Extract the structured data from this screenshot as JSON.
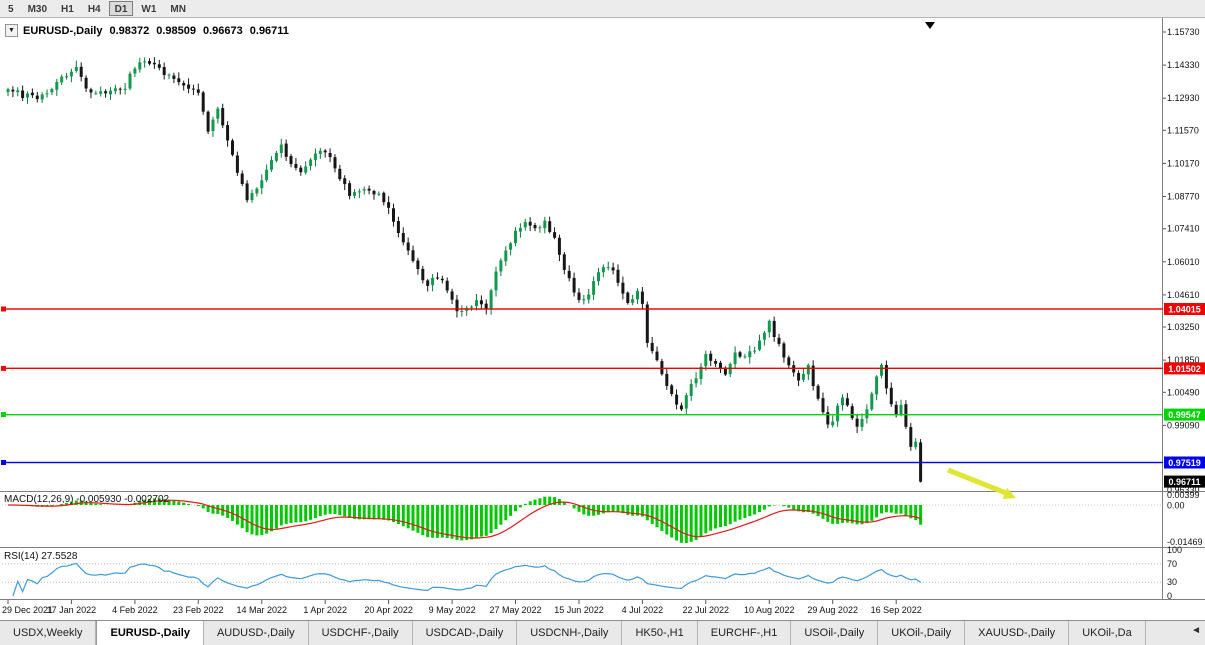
{
  "colors": {
    "bull": "#119a4e",
    "bear": "#161616",
    "wick_bull": "#0c7a3e",
    "wick_bear": "#161616",
    "macd_hist": "#00c800",
    "macd_signal": "#dd1c1c",
    "rsi_line": "#3f9ad9",
    "hline_red": "#f20000",
    "hline_green": "#00d400",
    "hline_blue": "#0000ee",
    "current_price_bg": "#000000",
    "axis_text": "#111111",
    "arrow": "#dfe534",
    "chrome_bg": "#ececec"
  },
  "toolbar": {
    "timeframes": [
      {
        "label": "5",
        "active": false
      },
      {
        "label": "M30",
        "active": false
      },
      {
        "label": "H1",
        "active": false
      },
      {
        "label": "H4",
        "active": false
      },
      {
        "label": "D1",
        "active": true
      },
      {
        "label": "W1",
        "active": false
      },
      {
        "label": "MN",
        "active": false
      }
    ]
  },
  "chart_header": {
    "collapse_icon": "▼",
    "symbol": "EURUSD-,Daily",
    "open": "0.98372",
    "high": "0.98509",
    "low": "0.96673",
    "close": "0.96711"
  },
  "price_axis": {
    "labels": [
      "1.15730",
      "1.14330",
      "1.12930",
      "1.11570",
      "1.10170",
      "1.08770",
      "1.07410",
      "1.06010",
      "1.04610",
      "1.03250",
      "1.01850",
      "1.00490",
      "0.99090"
    ],
    "bottom_label": "0.96330"
  },
  "hlines": [
    {
      "price": 1.04015,
      "label": "1.04015",
      "color_key": "hline_red"
    },
    {
      "price": 1.01502,
      "label": "1.01502",
      "color_key": "hline_red"
    },
    {
      "price": 0.99547,
      "label": "0.99547",
      "color_key": "hline_green"
    },
    {
      "price": 0.97519,
      "label": "0.97519",
      "color_key": "hline_blue"
    }
  ],
  "current_price_label": "0.96711",
  "macd_panel": {
    "title": "MACD(12,26,9) -0.005930 -0.002702",
    "axis_max_label": "0.00399",
    "axis_zero_label": "0.00",
    "axis_min_label": "-0.01469"
  },
  "rsi_panel": {
    "title": "RSI(14) 27.5528",
    "axis_labels": [
      "100",
      "70",
      "30",
      "0"
    ]
  },
  "date_axis": {
    "labels": [
      "29 Dec 2021",
      "17 Jan 2022",
      "4 Feb 2022",
      "23 Feb 2022",
      "14 Mar 2022",
      "1 Apr 2022",
      "20 Apr 2022",
      "9 May 2022",
      "27 May 2022",
      "15 Jun 2022",
      "4 Jul 2022",
      "22 Jul 2022",
      "10 Aug 2022",
      "29 Aug 2022",
      "16 Sep 2022"
    ]
  },
  "tabs": {
    "items": [
      {
        "label": "USDX,Weekly",
        "active": false
      },
      {
        "label": "EURUSD-,Daily",
        "active": true
      },
      {
        "label": "AUDUSD-,Daily",
        "active": false
      },
      {
        "label": "USDCHF-,Daily",
        "active": false
      },
      {
        "label": "USDCAD-,Daily",
        "active": false
      },
      {
        "label": "USDCNH-,Daily",
        "active": false
      },
      {
        "label": "HK50-,H1",
        "active": false
      },
      {
        "label": "EURCHF-,H1",
        "active": false
      },
      {
        "label": "USOil-,Daily",
        "active": false
      },
      {
        "label": "UKOil-,Daily",
        "active": false
      },
      {
        "label": "XAUUSD-,Daily",
        "active": false
      },
      {
        "label": "UKOil-,Da",
        "active": false
      }
    ],
    "scroll_left": "◄"
  },
  "chart_data": {
    "type": "candlestick",
    "symbol": "EURUSD",
    "timeframe": "Daily",
    "title": "EURUSD-,Daily 0.98372 0.98509 0.96673 0.96711",
    "visible_range": {
      "start": "29 Dec 2021",
      "end": "23 Sep 2022"
    },
    "bars_count": 188,
    "current_bar": {
      "open": 0.98372,
      "high": 0.98509,
      "low": 0.96673,
      "close": 0.96711
    },
    "y_axis_ticks": [
      1.1573,
      1.1433,
      1.1293,
      1.1157,
      1.1017,
      1.0877,
      1.0741,
      1.0601,
      1.0461,
      1.0325,
      1.0185,
      1.0049,
      0.9909,
      0.9633
    ],
    "x_labels": [
      "29 Dec 2021",
      "17 Jan 2022",
      "4 Feb 2022",
      "23 Feb 2022",
      "14 Mar 2022",
      "1 Apr 2022",
      "20 Apr 2022",
      "9 May 2022",
      "27 May 2022",
      "15 Jun 2022",
      "4 Jul 2022",
      "22 Jul 2022",
      "10 Aug 2022",
      "29 Aug 2022",
      "16 Sep 2022"
    ],
    "hlines": [
      1.04015,
      1.01502,
      0.99547,
      0.97519
    ],
    "trend_points": [
      [
        0,
        1.133
      ],
      [
        3,
        1.1305
      ],
      [
        6,
        1.129
      ],
      [
        9,
        1.1335
      ],
      [
        12,
        1.1395
      ],
      [
        14,
        1.1415
      ],
      [
        16,
        1.134
      ],
      [
        18,
        1.131
      ],
      [
        21,
        1.1325
      ],
      [
        24,
        1.1345
      ],
      [
        26,
        1.143
      ],
      [
        28,
        1.1455
      ],
      [
        30,
        1.1435
      ],
      [
        33,
        1.138
      ],
      [
        36,
        1.1345
      ],
      [
        39,
        1.131
      ],
      [
        40,
        1.124
      ],
      [
        41,
        1.115
      ],
      [
        43,
        1.124
      ],
      [
        45,
        1.112
      ],
      [
        47,
        1.098
      ],
      [
        49,
        1.086
      ],
      [
        51,
        1.092
      ],
      [
        53,
        1.099
      ],
      [
        56,
        1.11
      ],
      [
        58,
        1.101
      ],
      [
        60,
        1.098
      ],
      [
        62,
        1.103
      ],
      [
        64,
        1.108
      ],
      [
        66,
        1.104
      ],
      [
        68,
        1.096
      ],
      [
        70,
        1.089
      ],
      [
        73,
        1.091
      ],
      [
        76,
        1.088
      ],
      [
        78,
        1.082
      ],
      [
        80,
        1.072
      ],
      [
        82,
        1.064
      ],
      [
        84,
        1.056
      ],
      [
        86,
        1.051
      ],
      [
        88,
        1.054
      ],
      [
        90,
        1.048
      ],
      [
        92,
        1.039
      ],
      [
        94,
        1.04
      ],
      [
        96,
        1.044
      ],
      [
        98,
        1.041
      ],
      [
        100,
        1.055
      ],
      [
        102,
        1.065
      ],
      [
        104,
        1.073
      ],
      [
        106,
        1.076
      ],
      [
        108,
        1.073
      ],
      [
        110,
        1.077
      ],
      [
        112,
        1.07
      ],
      [
        114,
        1.056
      ],
      [
        116,
        1.048
      ],
      [
        117,
        1.044
      ],
      [
        119,
        1.047
      ],
      [
        121,
        1.056
      ],
      [
        123,
        1.059
      ],
      [
        125,
        1.052
      ],
      [
        127,
        1.043
      ],
      [
        129,
        1.048
      ],
      [
        130,
        1.043
      ],
      [
        131,
        1.026
      ],
      [
        133,
        1.018
      ],
      [
        135,
        1.007
      ],
      [
        137,
        1.0005
      ],
      [
        138,
        0.9975
      ],
      [
        139,
        1.004
      ],
      [
        141,
        1.012
      ],
      [
        143,
        1.021
      ],
      [
        145,
        1.017
      ],
      [
        147,
        1.013
      ],
      [
        149,
        1.022
      ],
      [
        151,
        1.019
      ],
      [
        153,
        1.023
      ],
      [
        155,
        1.029
      ],
      [
        156,
        1.034
      ],
      [
        158,
        1.025
      ],
      [
        160,
        1.016
      ],
      [
        162,
        1.009
      ],
      [
        164,
        1.017
      ],
      [
        165,
        1.008
      ],
      [
        166,
        1.001
      ],
      [
        167,
        0.996
      ],
      [
        168,
        0.992
      ],
      [
        169,
        0.9935
      ],
      [
        170,
        1.0
      ],
      [
        171,
        1.003
      ],
      [
        172,
        0.999
      ],
      [
        173,
        0.995
      ],
      [
        174,
        0.99
      ],
      [
        175,
        0.993
      ],
      [
        176,
        0.998
      ],
      [
        177,
        1.005
      ],
      [
        178,
        1.012
      ],
      [
        179,
        1.0165
      ],
      [
        180,
        1.007
      ],
      [
        181,
        1.001
      ],
      [
        182,
        0.996
      ],
      [
        183,
        1.0
      ],
      [
        184,
        0.99
      ],
      [
        185,
        0.983
      ],
      [
        186,
        0.9837
      ],
      [
        187,
        0.96711
      ]
    ],
    "macd": {
      "fast": 12,
      "slow": 26,
      "signal_period": 9,
      "main_value": -0.00593,
      "signal_value": -0.002702,
      "axis": [
        0.00399,
        0.0,
        -0.01469
      ]
    },
    "rsi": {
      "period": 14,
      "value": 27.5528,
      "axis": [
        100,
        70,
        30,
        0
      ]
    },
    "annotations": [
      {
        "type": "arrow",
        "direction": "down-right",
        "color": "#dfe534",
        "meaning": "sell-pressure-arrow"
      }
    ]
  }
}
